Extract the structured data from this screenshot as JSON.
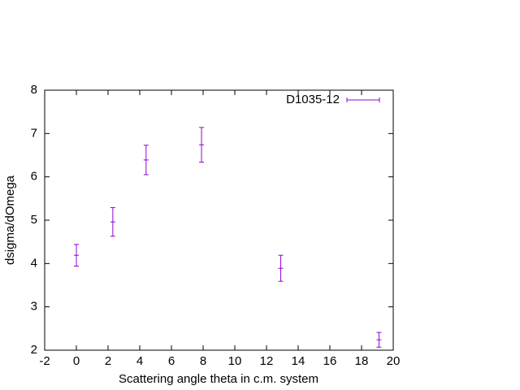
{
  "chart_data": {
    "type": "errorbar",
    "x_label": "Scattering angle theta in c.m. system",
    "y_label": "dsigma/dOmega",
    "series": [
      {
        "name": "D1035-12",
        "color": "#9400d3",
        "x": [
          0,
          2.3,
          4.4,
          7.9,
          12.9,
          19.1
        ],
        "values": [
          4.19,
          4.96,
          6.39,
          6.74,
          3.89,
          2.24
        ],
        "errors": [
          0.25,
          0.33,
          0.34,
          0.4,
          0.3,
          0.17
        ]
      }
    ],
    "xlim": [
      -2,
      20
    ],
    "xticks": [
      -2,
      0,
      2,
      4,
      6,
      8,
      10,
      12,
      14,
      16,
      18,
      20
    ],
    "ylim": [
      2,
      8
    ],
    "yticks": [
      2,
      3,
      4,
      5,
      6,
      7,
      8
    ],
    "legend": "top-right"
  }
}
